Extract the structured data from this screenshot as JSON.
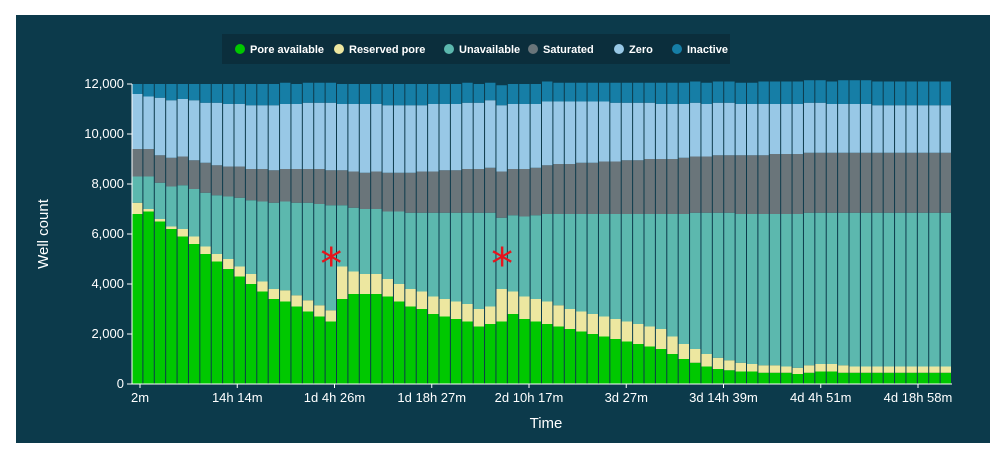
{
  "chart_data": {
    "type": "bar",
    "stacked": true,
    "xlabel": "Time",
    "ylabel": "Well count",
    "ylim": [
      0,
      12000
    ],
    "y_ticks": [
      "0",
      "2,000",
      "4,000",
      "6,000",
      "8,000",
      "10,000",
      "12,000"
    ],
    "x_tick_labels": [
      "2m",
      "14h 14m",
      "1d 4h 26m",
      "1d 18h 27m",
      "2d 10h 17m",
      "3d  27m",
      "3d 14h 39m",
      "4d 4h 51m",
      "4d 18h 58m"
    ],
    "legend_position": "top",
    "series": [
      {
        "name": "Pore available",
        "color": "#00c800",
        "values": [
          6800,
          6900,
          6500,
          6200,
          5900,
          5600,
          5200,
          4900,
          4600,
          4300,
          4000,
          3700,
          3400,
          3300,
          3100,
          2900,
          2700,
          2500,
          3400,
          3600,
          3600,
          3600,
          3500,
          3300,
          3100,
          3000,
          2800,
          2700,
          2600,
          2500,
          2300,
          2400,
          2500,
          2800,
          2600,
          2500,
          2400,
          2300,
          2200,
          2100,
          2000,
          1900,
          1800,
          1700,
          1600,
          1500,
          1400,
          1200,
          1000,
          850,
          700,
          600,
          550,
          500,
          500,
          450,
          450,
          450,
          400,
          450,
          500,
          500,
          450,
          450,
          450,
          450,
          450,
          450,
          450,
          450,
          450,
          450
        ]
      },
      {
        "name": "Reserved pore",
        "color": "#ede7a0",
        "values": [
          450,
          100,
          100,
          100,
          300,
          300,
          300,
          300,
          400,
          400,
          400,
          400,
          400,
          450,
          450,
          450,
          450,
          450,
          1300,
          900,
          800,
          800,
          700,
          700,
          700,
          700,
          700,
          700,
          700,
          700,
          700,
          700,
          1300,
          900,
          900,
          900,
          900,
          850,
          800,
          800,
          800,
          800,
          800,
          800,
          800,
          800,
          800,
          700,
          600,
          550,
          500,
          450,
          400,
          350,
          300,
          300,
          300,
          250,
          250,
          300,
          300,
          300,
          300,
          250,
          250,
          250,
          250,
          250,
          250,
          250,
          250,
          250
        ]
      },
      {
        "name": "Unavailable",
        "color": "#5cb8ae",
        "values": [
          1050,
          1300,
          1450,
          1600,
          1750,
          1900,
          2150,
          2350,
          2500,
          2750,
          2950,
          3200,
          3450,
          3550,
          3700,
          3900,
          4050,
          4200,
          2450,
          2550,
          2600,
          2600,
          2700,
          2900,
          3050,
          3150,
          3350,
          3450,
          3550,
          3650,
          3850,
          3750,
          2850,
          3050,
          3200,
          3350,
          3500,
          3650,
          3800,
          3900,
          4000,
          4100,
          4200,
          4300,
          4400,
          4500,
          4600,
          4900,
          5200,
          5450,
          5650,
          5800,
          5900,
          5950,
          6000,
          6050,
          6050,
          6100,
          6150,
          6100,
          6050,
          6050,
          6100,
          6150,
          6150,
          6150,
          6150,
          6150,
          6150,
          6150,
          6150,
          6150
        ]
      },
      {
        "name": "Saturated",
        "color": "#6a757a",
        "values": [
          1100,
          1100,
          1100,
          1150,
          1150,
          1150,
          1200,
          1200,
          1200,
          1250,
          1250,
          1300,
          1300,
          1300,
          1350,
          1350,
          1400,
          1400,
          1400,
          1450,
          1450,
          1500,
          1550,
          1550,
          1600,
          1650,
          1650,
          1700,
          1700,
          1750,
          1750,
          1800,
          1850,
          1850,
          1900,
          1900,
          1950,
          2000,
          2000,
          2050,
          2050,
          2100,
          2100,
          2150,
          2150,
          2200,
          2200,
          2200,
          2250,
          2250,
          2250,
          2300,
          2300,
          2350,
          2350,
          2350,
          2400,
          2400,
          2400,
          2400,
          2400,
          2400,
          2400,
          2400,
          2400,
          2400,
          2400,
          2400,
          2400,
          2400,
          2400,
          2400
        ]
      },
      {
        "name": "Zero",
        "color": "#98c8e6",
        "values": [
          2200,
          2100,
          2300,
          2300,
          2300,
          2400,
          2400,
          2500,
          2500,
          2500,
          2550,
          2550,
          2600,
          2600,
          2600,
          2650,
          2650,
          2700,
          2650,
          2700,
          2750,
          2700,
          2700,
          2700,
          2700,
          2650,
          2700,
          2650,
          2650,
          2650,
          2650,
          2700,
          2650,
          2600,
          2600,
          2550,
          2550,
          2500,
          2500,
          2450,
          2450,
          2400,
          2350,
          2300,
          2300,
          2250,
          2200,
          2200,
          2150,
          2150,
          2100,
          2100,
          2100,
          2050,
          2050,
          2050,
          2000,
          2000,
          2000,
          2000,
          2000,
          1950,
          1950,
          1950,
          1950,
          1900,
          1900,
          1900,
          1900,
          1900,
          1900,
          1900
        ]
      },
      {
        "name": "Inactive",
        "color": "#167ea6",
        "values": [
          400,
          500,
          550,
          650,
          600,
          650,
          750,
          750,
          800,
          800,
          850,
          850,
          850,
          850,
          800,
          800,
          800,
          800,
          800,
          800,
          800,
          800,
          850,
          850,
          850,
          850,
          800,
          800,
          800,
          800,
          750,
          700,
          800,
          800,
          800,
          800,
          800,
          750,
          750,
          750,
          750,
          750,
          800,
          800,
          800,
          800,
          850,
          850,
          850,
          850,
          850,
          850,
          850,
          850,
          850,
          900,
          900,
          900,
          900,
          900,
          900,
          900,
          950,
          950,
          950,
          950,
          950,
          950,
          950,
          950,
          950,
          950
        ]
      }
    ],
    "annotations": [
      {
        "text": "*",
        "x_index": 17,
        "y": 5400
      },
      {
        "text": "*",
        "x_index": 32,
        "y": 5400
      }
    ]
  }
}
